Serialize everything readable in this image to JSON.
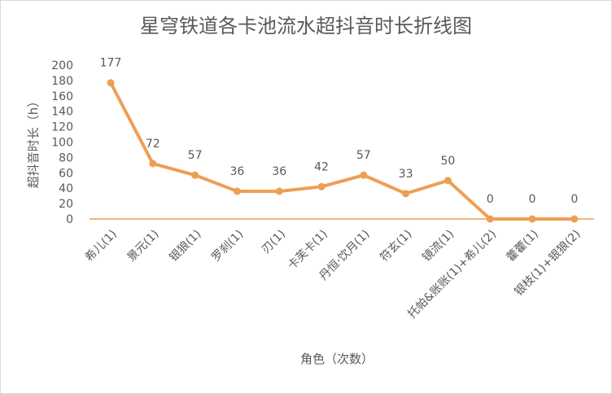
{
  "chart_data": {
    "type": "line",
    "title": "星穹铁道各卡池流水超抖音时长折线图",
    "xlabel": "角色（次数）",
    "ylabel": "超抖音时长（h）",
    "categories": [
      "希儿(1)",
      "景元(1)",
      "银狼(1)",
      "罗刹(1)",
      "刃(1)",
      "卡芙卡(1)",
      "丹恒·饮月(1)",
      "符玄(1)",
      "镜流(1)",
      "托帕&账账(1)+希儿(2)",
      "藿藿(1)",
      "银枝(1)+银狼(2)"
    ],
    "values": [
      177,
      72,
      57,
      36,
      36,
      42,
      57,
      33,
      50,
      0,
      0,
      0
    ],
    "data_labels": [
      "177",
      "72",
      "57",
      "36",
      "36",
      "42",
      "57",
      "33",
      "50",
      "0",
      "0",
      "0"
    ],
    "ylim": [
      0,
      200
    ],
    "yticks": [
      "0",
      "20",
      "40",
      "60",
      "80",
      "100",
      "120",
      "140",
      "160",
      "180",
      "200"
    ],
    "grid": false,
    "legend": "none",
    "colors": {
      "line": "#ED9F55",
      "marker": "#ED9F55",
      "text": "#595959",
      "axis": "#D9D9D9"
    }
  }
}
